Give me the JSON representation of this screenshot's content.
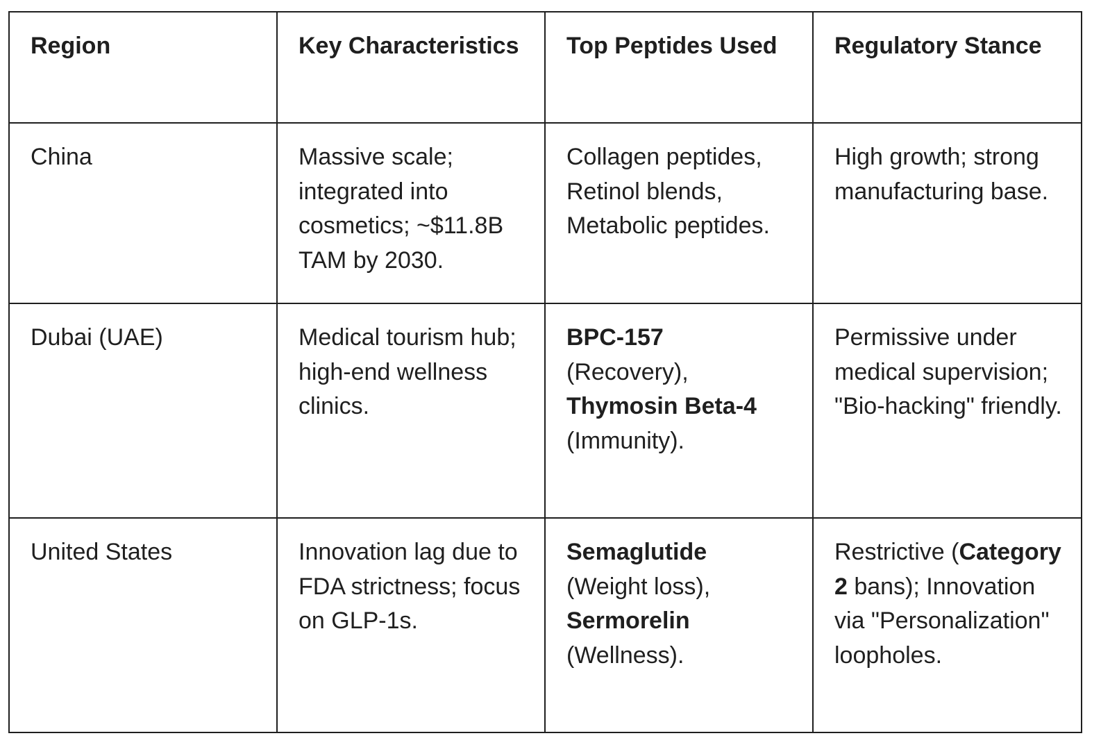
{
  "table": {
    "headers": {
      "region": "Region",
      "characteristics": "Key Characteristics",
      "peptides": "Top Peptides Used",
      "regulatory": "Regulatory Stance"
    },
    "rows": [
      {
        "region": "China",
        "characteristics": "Massive scale; integrated into cosmetics; ~$11.8B TAM by 2030.",
        "peptides": {
          "text": "Collagen peptides, Retinol blends, Metabolic peptides."
        },
        "regulatory": {
          "text": "High growth; strong manufacturing base."
        }
      },
      {
        "region": "Dubai (UAE)",
        "characteristics": "Medical tourism hub; high-end wellness clinics.",
        "peptides": {
          "p1_name": "BPC-157",
          "p1_note": "(Recovery),",
          "p2_name": "Thymosin Beta-4",
          "p2_note": "(Immunity)."
        },
        "regulatory": {
          "text": "Permissive under medical supervision; \"Bio-hacking\" friendly."
        }
      },
      {
        "region": "United States",
        "characteristics": "Innovation lag due to FDA strictness; focus on GLP-1s.",
        "peptides": {
          "p1_name": "Semaglutide",
          "p1_note": "(Weight loss),",
          "p2_name": "Sermorelin",
          "p2_note": "(Wellness)."
        },
        "regulatory": {
          "before": "Restrictive (",
          "bold": "Category 2",
          "after": " bans); Innovation via \"Personalization\" loopholes."
        }
      }
    ]
  }
}
